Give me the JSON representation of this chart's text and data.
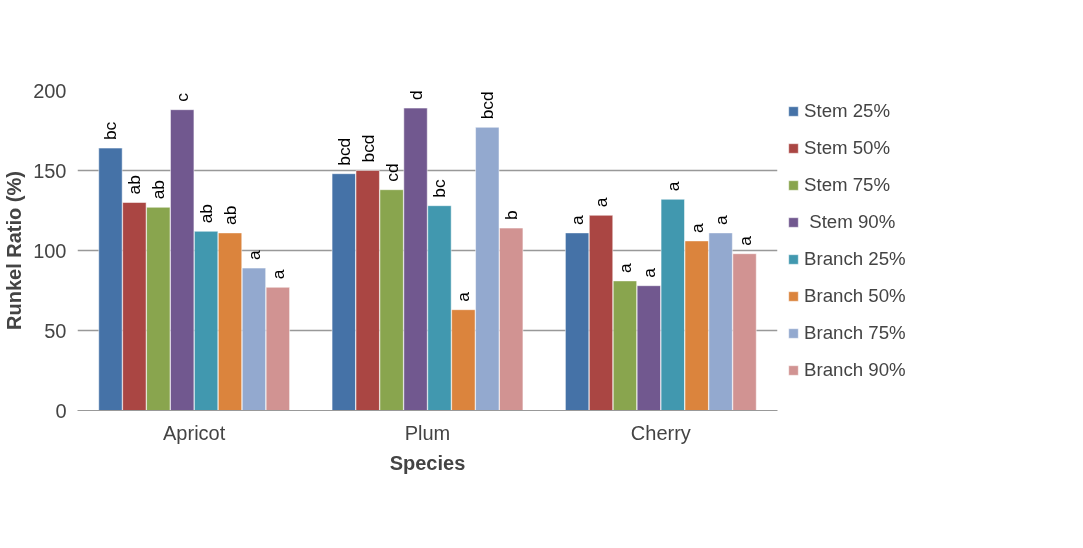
{
  "chart_data": {
    "type": "bar",
    "xlabel": "Species",
    "ylabel": "Runkel Ratio (%)",
    "categories": [
      "Apricot",
      "Plum",
      "Cherry"
    ],
    "series": [
      {
        "name": "Stem 25%",
        "color": "#4572a7",
        "values": [
          164,
          148,
          111
        ],
        "value_labels": [
          "bc",
          "bcd",
          "a"
        ]
      },
      {
        "name": "Stem 50%",
        "color": "#aa4643",
        "values": [
          130,
          150,
          122
        ],
        "value_labels": [
          "ab",
          "bcd",
          "a"
        ]
      },
      {
        "name": "Stem 75%",
        "color": "#89a54e",
        "values": [
          127,
          138,
          81
        ],
        "value_labels": [
          "ab",
          "cd",
          "a"
        ]
      },
      {
        "name": " Stem 90%",
        "color": "#71588f",
        "values": [
          188,
          189,
          78
        ],
        "value_labels": [
          "c",
          "d",
          "a"
        ]
      },
      {
        "name": "Branch 25%",
        "color": "#4198af",
        "values": [
          112,
          128,
          132
        ],
        "value_labels": [
          "ab",
          "bc",
          "a"
        ]
      },
      {
        "name": "Branch 50%",
        "color": "#db843d",
        "values": [
          111,
          63,
          106
        ],
        "value_labels": [
          "ab",
          "a",
          "a"
        ]
      },
      {
        "name": "Branch 75%",
        "color": "#93a9cf",
        "values": [
          89,
          177,
          111
        ],
        "value_labels": [
          "a",
          "bcd",
          "a"
        ]
      },
      {
        "name": "Branch 90%",
        "color": "#d19392",
        "values": [
          77,
          114,
          98
        ],
        "value_labels": [
          "a",
          "b",
          "a"
        ]
      }
    ],
    "ylim": [
      0,
      200
    ],
    "yticks": [
      0,
      50,
      100,
      150,
      200
    ],
    "grid": "y",
    "legend": "right"
  }
}
